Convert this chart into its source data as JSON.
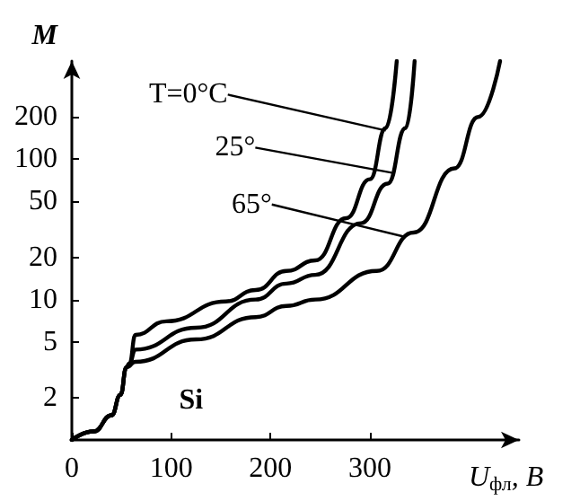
{
  "chart_data": {
    "type": "line",
    "xlabel": "U$_{фл}$, В",
    "ylabel": "M",
    "xlim": [
      0,
      450
    ],
    "xticks": [
      0,
      100,
      200,
      300
    ],
    "ylim": [
      1,
      500
    ],
    "yticks": [
      2,
      5,
      10,
      20,
      50,
      100,
      200
    ],
    "log": "y",
    "grid": false,
    "marker": "none",
    "line_style": "solid",
    "series": [
      {
        "color": "#000000",
        "x": [
          0,
          22,
          40,
          49,
          55,
          58,
          64,
          95,
          155,
          185,
          216,
          245,
          276,
          300,
          316,
          327
        ],
        "values": [
          1,
          1.15,
          1.5,
          2.1,
          3.3,
          3.5,
          5.6,
          7,
          9.7,
          11.7,
          16,
          19,
          38,
          72,
          167,
          500
        ]
      },
      {
        "color": "#000000",
        "x": [
          0,
          22,
          40,
          49,
          55,
          58,
          64,
          125,
          185,
          216,
          245,
          291,
          318,
          336,
          345
        ],
        "values": [
          1,
          1.15,
          1.5,
          2.1,
          3.3,
          3.5,
          4.4,
          6.3,
          10,
          13,
          15,
          35,
          67,
          167,
          500
        ]
      },
      {
        "color": "#000000",
        "x": [
          0,
          22,
          40,
          49,
          55,
          64,
          125,
          185,
          216,
          245,
          307,
          344,
          385,
          409,
          431
        ],
        "values": [
          1,
          1.15,
          1.5,
          2.1,
          3.3,
          3.6,
          5.2,
          7.5,
          9,
          10,
          16,
          30,
          86,
          200,
          500
        ]
      }
    ],
    "annotations": [
      {
        "text": "T=0°C",
        "x": 316,
        "y": 160
      },
      {
        "text": "25°",
        "x": 322,
        "y": 80
      },
      {
        "text": "65°",
        "x": 335,
        "y": 28
      },
      "Si"
    ]
  }
}
